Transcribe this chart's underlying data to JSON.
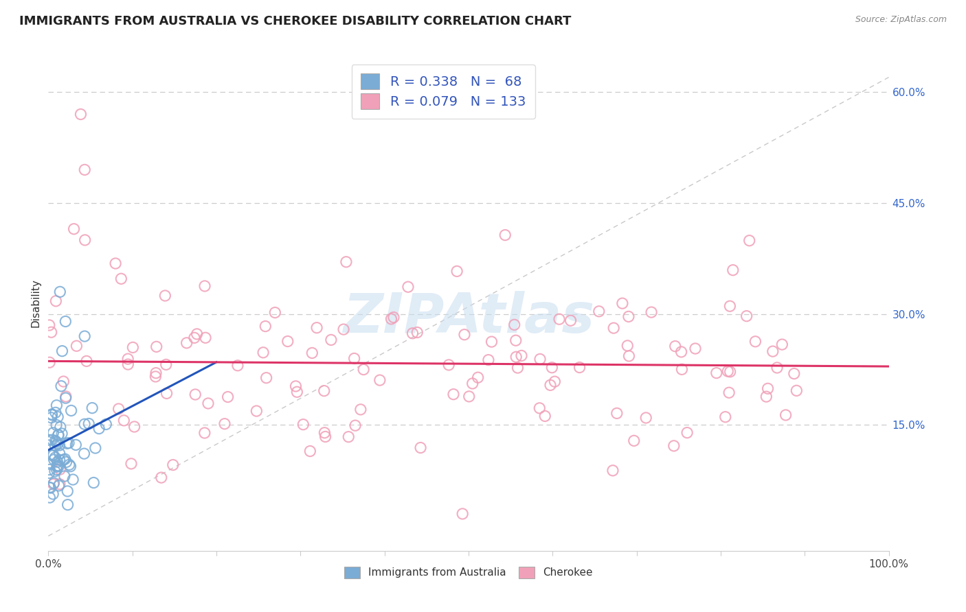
{
  "title": "IMMIGRANTS FROM AUSTRALIA VS CHEROKEE DISABILITY CORRELATION CHART",
  "source": "Source: ZipAtlas.com",
  "ylabel": "Disability",
  "xmin": 0.0,
  "xmax": 1.0,
  "ymin": -0.02,
  "ymax": 0.65,
  "australia_color": "#7aacd6",
  "cherokee_color": "#f0a0b8",
  "australia_R": 0.338,
  "australia_N": 68,
  "cherokee_R": 0.079,
  "cherokee_N": 133,
  "trend_line_australia_color": "#2255bb",
  "trend_line_cherokee_color": "#dd3366",
  "diagonal_color": "#bbbbbb",
  "watermark": "ZIPAtlas",
  "watermark_color": "#c8ddf0",
  "legend_box_color": "#3355bb",
  "background_color": "#ffffff",
  "grid_color": "#cccccc",
  "right_ytick_vals": [
    0.15,
    0.3,
    0.45,
    0.6
  ],
  "right_ytick_labels": [
    "15.0%",
    "30.0%",
    "45.0%",
    "60.0%"
  ]
}
